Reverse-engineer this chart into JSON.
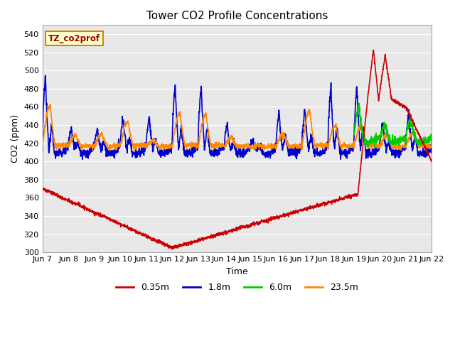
{
  "title": "Tower CO2 Profile Concentrations",
  "xlabel": "Time",
  "ylabel": "CO2 (ppm)",
  "ylim": [
    300,
    550
  ],
  "yticks": [
    300,
    320,
    340,
    360,
    380,
    400,
    420,
    440,
    460,
    480,
    500,
    520,
    540
  ],
  "xtick_labels": [
    "Jun 7",
    "Jun 8",
    "Jun 9",
    "Jun 10",
    "Jun 11",
    "Jun 12",
    "Jun 13",
    "Jun 14",
    "Jun 15",
    "Jun 16",
    "Jun 17",
    "Jun 18",
    "Jun 19",
    "Jun 20",
    "Jun 21",
    "Jun 22"
  ],
  "xtick_positions": [
    0,
    1,
    2,
    3,
    4,
    5,
    6,
    7,
    8,
    9,
    10,
    11,
    12,
    13,
    14,
    15
  ],
  "bg_color": "#e8e8e8",
  "plot_bg": "#dcdcdc",
  "legend_label": "TZ_co2prof",
  "legend_bg": "#ffffcc",
  "legend_border": "#cc8800",
  "series_colors": {
    "0.35m": "#cc0000",
    "1.8m": "#0000cc",
    "6.0m": "#00cc00",
    "23.5m": "#ff8800"
  },
  "line_width": 1.2,
  "n_points": 2000
}
